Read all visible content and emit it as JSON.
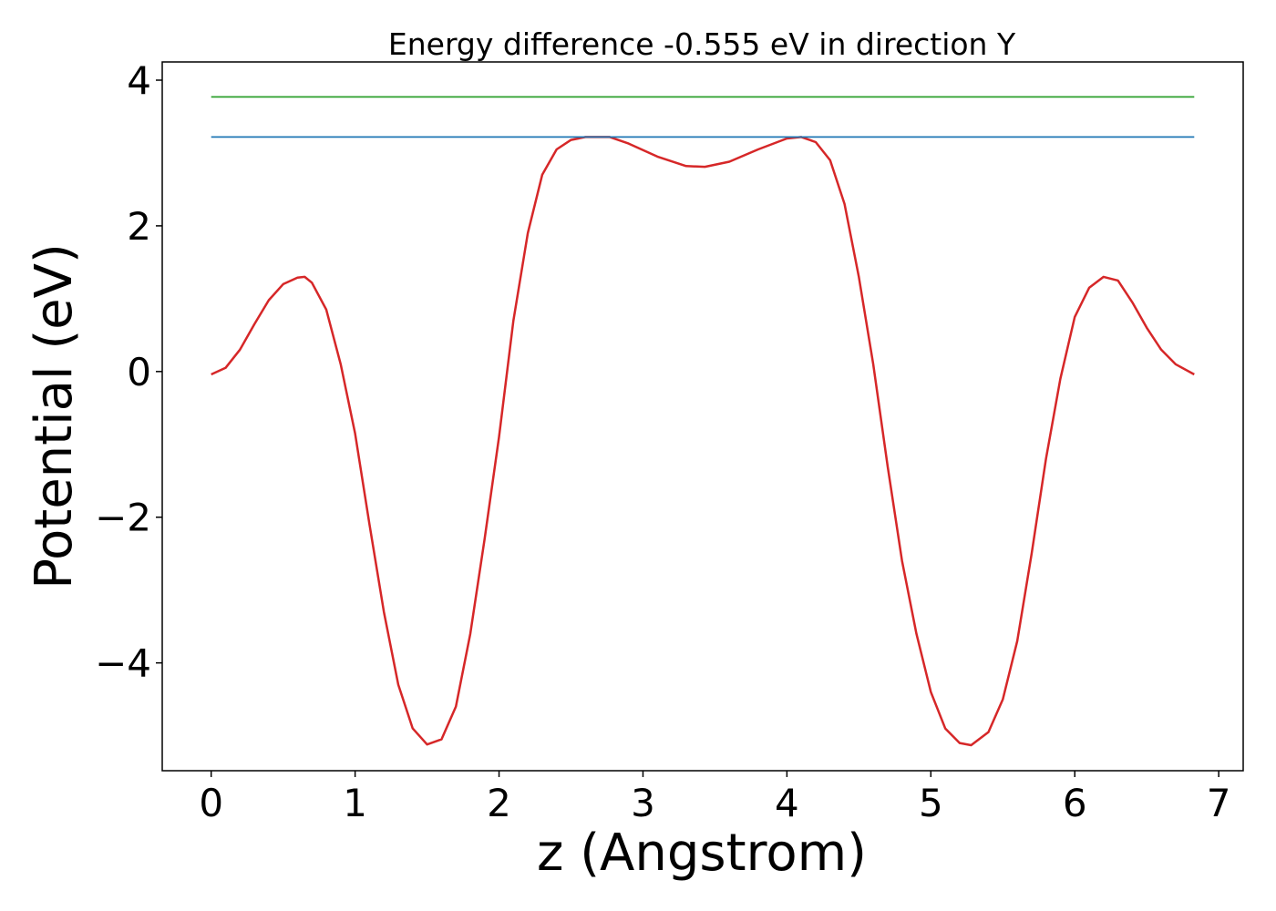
{
  "chart_data": {
    "type": "line",
    "title": "Energy difference -0.555 eV in direction Y",
    "xlabel": "z (Angstrom)",
    "ylabel": "Potential (eV)",
    "xlim": [
      -0.34,
      7.17
    ],
    "ylim": [
      -5.48,
      4.25
    ],
    "xticks": [
      0,
      1,
      2,
      3,
      4,
      5,
      6,
      7
    ],
    "yticks": [
      -4,
      -2,
      0,
      2,
      4
    ],
    "grid": false,
    "colors": {
      "potential": "#d62728",
      "level_upper": "#2ca02c",
      "level_lower": "#1f77b4"
    },
    "series": [
      {
        "key": "potential",
        "x": [
          0,
          0.1,
          0.2,
          0.3,
          0.4,
          0.5,
          0.6,
          0.65,
          0.7,
          0.8,
          0.9,
          1.0,
          1.1,
          1.2,
          1.3,
          1.4,
          1.5,
          1.6,
          1.7,
          1.8,
          1.9,
          2.0,
          2.1,
          2.2,
          2.3,
          2.4,
          2.5,
          2.6,
          2.7,
          2.77,
          2.9,
          3.1,
          3.3,
          3.43,
          3.6,
          3.8,
          4.0,
          4.1,
          4.2,
          4.3,
          4.4,
          4.5,
          4.6,
          4.7,
          4.8,
          4.9,
          5.0,
          5.1,
          5.2,
          5.28,
          5.4,
          5.5,
          5.6,
          5.7,
          5.8,
          5.9,
          6.0,
          6.1,
          6.2,
          6.3,
          6.4,
          6.5,
          6.6,
          6.7,
          6.83
        ],
        "y": [
          -0.04,
          0.05,
          0.3,
          0.65,
          0.98,
          1.2,
          1.29,
          1.3,
          1.22,
          0.85,
          0.1,
          -0.85,
          -2.1,
          -3.3,
          -4.3,
          -4.9,
          -5.12,
          -5.05,
          -4.6,
          -3.6,
          -2.3,
          -0.9,
          0.7,
          1.9,
          2.7,
          3.05,
          3.18,
          3.22,
          3.22,
          3.22,
          3.13,
          2.95,
          2.82,
          2.81,
          2.88,
          3.05,
          3.2,
          3.22,
          3.15,
          2.9,
          2.3,
          1.3,
          0.1,
          -1.3,
          -2.6,
          -3.6,
          -4.4,
          -4.9,
          -5.1,
          -5.13,
          -4.95,
          -4.5,
          -3.7,
          -2.5,
          -1.2,
          -0.1,
          0.75,
          1.15,
          1.3,
          1.25,
          0.95,
          0.6,
          0.3,
          0.1,
          -0.04
        ]
      },
      {
        "key": "level_upper",
        "x": [
          0,
          6.83
        ],
        "y": [
          3.77,
          3.77
        ]
      },
      {
        "key": "level_lower",
        "x": [
          0,
          6.83
        ],
        "y": [
          3.22,
          3.22
        ]
      }
    ]
  }
}
